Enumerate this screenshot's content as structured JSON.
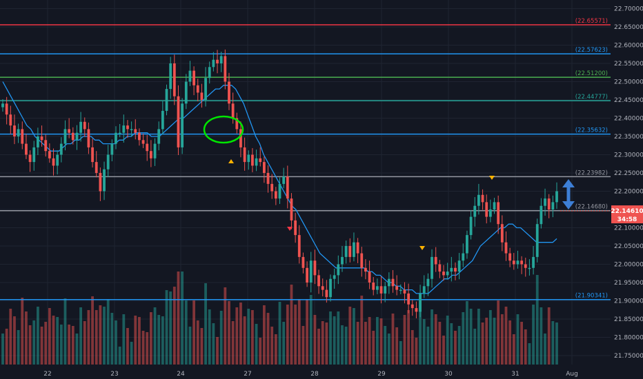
{
  "chart_data": {
    "type": "candlestick",
    "y_range": [
      21.72,
      22.72
    ],
    "y_ticks": [
      "22.70000",
      "22.65000",
      "22.60000",
      "22.55000",
      "22.50000",
      "22.45000",
      "22.40000",
      "22.35000",
      "22.30000",
      "22.25000",
      "22.20000",
      "22.15000",
      "22.10000",
      "22.05000",
      "22.00000",
      "21.95000",
      "21.90000",
      "21.85000",
      "21.80000",
      "21.75000"
    ],
    "x_ticks": [
      "22",
      "23",
      "24",
      "27",
      "28",
      "29",
      "30",
      "31",
      "Aug"
    ],
    "levels": [
      {
        "label": "22.65571",
        "value": 22.65571,
        "color": "#f23645"
      },
      {
        "label": "22.57623",
        "value": 22.57623,
        "color": "#2196f3"
      },
      {
        "label": "22.51200",
        "value": 22.512,
        "color": "#4caf50"
      },
      {
        "label": "22.44777",
        "value": 22.44777,
        "color": "#26a69a"
      },
      {
        "label": "22.35632",
        "value": 22.35632,
        "color": "#2196f3"
      },
      {
        "label": "22.23982",
        "value": 22.23982,
        "color": "#9598a1"
      },
      {
        "label": "22.14680",
        "value": 22.1468,
        "color": "#9598a1"
      },
      {
        "label": "21.90341",
        "value": 21.90341,
        "color": "#2196f3"
      }
    ],
    "last_price": {
      "value": 22.1461,
      "label": "22.14610",
      "countdown": "34:58"
    },
    "candle_close": [
      22.44,
      22.41,
      22.38,
      22.35,
      22.37,
      22.33,
      22.3,
      22.28,
      22.32,
      22.35,
      22.34,
      22.31,
      22.29,
      22.27,
      22.3,
      22.33,
      22.37,
      22.36,
      22.34,
      22.36,
      22.39,
      22.37,
      22.32,
      22.28,
      22.25,
      22.2,
      22.26,
      22.3,
      22.33,
      22.36,
      22.36,
      22.38,
      22.37,
      22.37,
      22.36,
      22.34,
      22.33,
      22.31,
      22.29,
      22.33,
      22.37,
      22.42,
      22.48,
      22.55,
      22.46,
      22.32,
      22.44,
      22.5,
      22.53,
      22.49,
      22.47,
      22.45,
      22.51,
      22.54,
      22.56,
      22.55,
      22.57,
      22.5,
      22.44,
      22.4,
      22.37,
      22.32,
      22.28,
      22.3,
      22.27,
      22.29,
      22.28,
      22.25,
      22.22,
      22.2,
      22.18,
      22.22,
      22.24,
      22.18,
      22.12,
      22.08,
      22.02,
      21.99,
      21.95,
      22.01,
      21.97,
      21.94,
      21.93,
      21.91,
      21.96,
      21.97,
      22.0,
      22.02,
      22.05,
      22.02,
      22.06,
      22.03,
      21.99,
      21.98,
      21.95,
      21.93,
      21.94,
      21.92,
      21.94,
      21.96,
      21.94,
      21.93,
      21.93,
      21.92,
      21.89,
      21.88,
      21.87,
      21.92,
      21.94,
      21.96,
      22.02,
      22.0,
      21.98,
      21.97,
      21.98,
      21.99,
      21.98,
      22.01,
      22.03,
      22.08,
      22.13,
      22.16,
      22.19,
      22.17,
      22.13,
      22.15,
      22.17,
      22.11,
      22.06,
      22.03,
      22.01,
      22.0,
      22.01,
      22.0,
      21.99,
      21.99,
      22.02,
      22.11,
      22.16,
      22.18,
      22.15,
      22.17,
      22.2
    ],
    "candle_open": [
      22.43,
      22.44,
      22.41,
      22.38,
      22.35,
      22.37,
      22.33,
      22.3,
      22.28,
      22.32,
      22.35,
      22.34,
      22.31,
      22.29,
      22.27,
      22.3,
      22.33,
      22.37,
      22.36,
      22.34,
      22.36,
      22.39,
      22.37,
      22.32,
      22.28,
      22.25,
      22.2,
      22.26,
      22.3,
      22.33,
      22.36,
      22.36,
      22.38,
      22.37,
      22.37,
      22.36,
      22.34,
      22.33,
      22.31,
      22.29,
      22.33,
      22.37,
      22.42,
      22.48,
      22.55,
      22.46,
      22.32,
      22.44,
      22.5,
      22.53,
      22.49,
      22.47,
      22.45,
      22.51,
      22.54,
      22.56,
      22.55,
      22.57,
      22.5,
      22.44,
      22.4,
      22.37,
      22.32,
      22.28,
      22.3,
      22.27,
      22.29,
      22.28,
      22.25,
      22.22,
      22.2,
      22.18,
      22.22,
      22.24,
      22.18,
      22.12,
      22.08,
      22.02,
      21.99,
      21.95,
      22.01,
      21.97,
      21.94,
      21.93,
      21.91,
      21.96,
      21.97,
      22.0,
      22.02,
      22.05,
      22.02,
      22.06,
      22.03,
      21.99,
      21.98,
      21.95,
      21.93,
      21.94,
      21.92,
      21.94,
      21.96,
      21.94,
      21.93,
      21.93,
      21.92,
      21.89,
      21.88,
      21.87,
      21.92,
      21.94,
      21.96,
      22.02,
      22.0,
      21.98,
      21.97,
      21.98,
      21.99,
      21.98,
      22.01,
      22.03,
      22.08,
      22.13,
      22.16,
      22.19,
      22.17,
      22.13,
      22.15,
      22.17,
      22.11,
      22.06,
      22.03,
      22.01,
      22.0,
      22.01,
      22.0,
      21.99,
      21.99,
      22.02,
      22.11,
      22.16,
      22.18,
      22.15,
      22.17
    ],
    "ma_line": [
      22.5,
      22.48,
      22.46,
      22.44,
      22.42,
      22.4,
      22.38,
      22.37,
      22.35,
      22.34,
      22.33,
      22.32,
      22.31,
      22.31,
      22.31,
      22.32,
      22.33,
      22.33,
      22.34,
      22.34,
      22.35,
      22.35,
      22.35,
      22.34,
      22.34,
      22.33,
      22.33,
      22.33,
      22.33,
      22.34,
      22.34,
      22.35,
      22.35,
      22.36,
      22.36,
      22.36,
      22.36,
      22.35,
      22.35,
      22.35,
      22.36,
      22.37,
      22.38,
      22.39,
      22.4,
      22.4,
      22.41,
      22.42,
      22.43,
      22.44,
      22.45,
      22.46,
      22.47,
      22.48,
      22.48,
      22.49,
      22.49,
      22.49,
      22.48,
      22.46,
      22.44,
      22.41,
      22.38,
      22.35,
      22.33,
      22.3,
      22.28,
      22.26,
      22.24,
      22.22,
      22.2,
      22.18,
      22.16,
      22.15,
      22.13,
      22.11,
      22.09,
      22.07,
      22.05,
      22.03,
      22.02,
      22.01,
      22.0,
      21.99,
      21.99,
      21.99,
      21.99,
      21.99,
      21.99,
      21.99,
      21.99,
      21.98,
      21.98,
      21.97,
      21.97,
      21.96,
      21.95,
      21.95,
      21.94,
      21.94,
      21.93,
      21.93,
      21.93,
      21.92,
      21.92,
      21.92,
      21.92,
      21.93,
      21.94,
      21.95,
      21.96,
      21.96,
      21.97,
      21.97,
      21.98,
      21.99,
      22.0,
      22.01,
      22.03,
      22.05,
      22.06,
      22.07,
      22.08,
      22.09,
      22.1,
      22.1,
      22.11,
      22.11,
      22.1,
      22.1,
      22.09,
      22.08,
      22.07,
      22.06,
      22.06,
      22.06,
      22.06,
      22.06,
      22.07
    ]
  }
}
